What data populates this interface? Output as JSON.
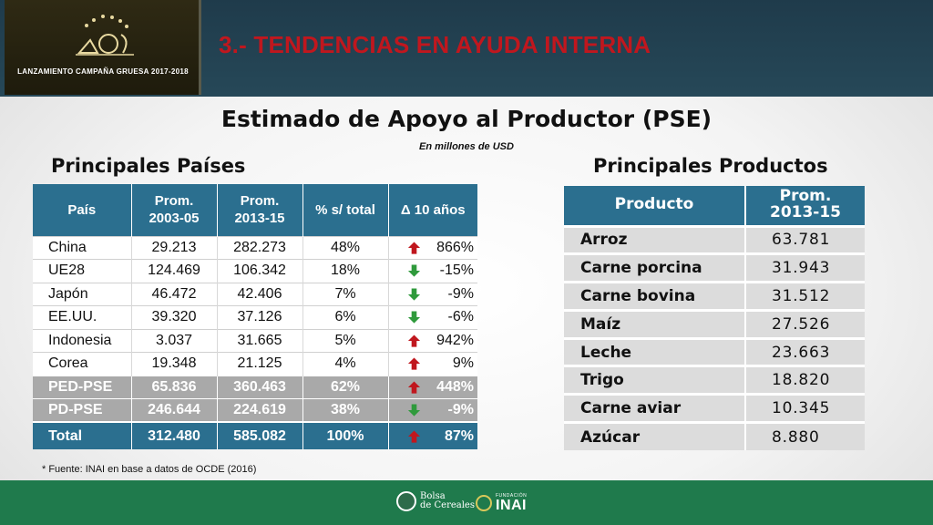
{
  "header": {
    "logo_caption": "LANZAMIENTO CAMPAÑA GRUESA 2017-2018",
    "section_title": "3.- TENDENCIAS EN AYUDA INTERNA"
  },
  "title": "Estimado de Apoyo al Productor (PSE)",
  "subtitle": "En millones de USD",
  "countries": {
    "heading": "Principales Países",
    "columns": [
      "País",
      "Prom.\n2003-05",
      "Prom.\n2013-15",
      "% s/ total",
      "Δ 10 años"
    ],
    "rows": [
      {
        "name": "China",
        "avg_2003": "29.213",
        "avg_2013": "282.273",
        "share": "48%",
        "delta": "866%",
        "trend": "up"
      },
      {
        "name": "UE28",
        "avg_2003": "124.469",
        "avg_2013": "106.342",
        "share": "18%",
        "delta": "-15%",
        "trend": "down"
      },
      {
        "name": "Japón",
        "avg_2003": "46.472",
        "avg_2013": "42.406",
        "share": "7%",
        "delta": "-9%",
        "trend": "down"
      },
      {
        "name": "EE.UU.",
        "avg_2003": "39.320",
        "avg_2013": "37.126",
        "share": "6%",
        "delta": "-6%",
        "trend": "down"
      },
      {
        "name": "Indonesia",
        "avg_2003": "3.037",
        "avg_2013": "31.665",
        "share": "5%",
        "delta": "942%",
        "trend": "up"
      },
      {
        "name": "Corea",
        "avg_2003": "19.348",
        "avg_2013": "21.125",
        "share": "4%",
        "delta": "9%",
        "trend": "up"
      }
    ],
    "groups": [
      {
        "name": "PED-PSE",
        "avg_2003": "65.836",
        "avg_2013": "360.463",
        "share": "62%",
        "delta": "448%",
        "trend": "up"
      },
      {
        "name": "PD-PSE",
        "avg_2003": "246.644",
        "avg_2013": "224.619",
        "share": "38%",
        "delta": "-9%",
        "trend": "down"
      }
    ],
    "total": {
      "name": "Total",
      "avg_2003": "312.480",
      "avg_2013": "585.082",
      "share": "100%",
      "delta": "87%",
      "trend": "up"
    }
  },
  "products": {
    "heading": "Principales Productos",
    "columns": [
      "Producto",
      "Prom.\n2013-15"
    ],
    "rows": [
      {
        "name": "Arroz",
        "value": "63.781"
      },
      {
        "name": "Carne porcina",
        "value": "31.943"
      },
      {
        "name": "Carne bovina",
        "value": "31.512"
      },
      {
        "name": "Maíz",
        "value": "27.526"
      },
      {
        "name": "Leche",
        "value": "23.663"
      },
      {
        "name": "Trigo",
        "value": "18.820"
      },
      {
        "name": "Carne aviar",
        "value": "10.345"
      },
      {
        "name": "Azúcar",
        "value": "8.880"
      }
    ]
  },
  "footnote": "* Fuente: INAI en base a datos de OCDE (2016)",
  "footer": {
    "logo1_line1": "Bolsa",
    "logo1_line2": "de Cereales",
    "logo2_small": "FUNDACIÓN",
    "logo2_name": "INAI"
  },
  "colors": {
    "table_header": "#2b6f8f",
    "trend_up": "#c0171e",
    "trend_down": "#2f9a3c",
    "title_red": "#c0171e",
    "footer_green": "#1f7a4c"
  }
}
